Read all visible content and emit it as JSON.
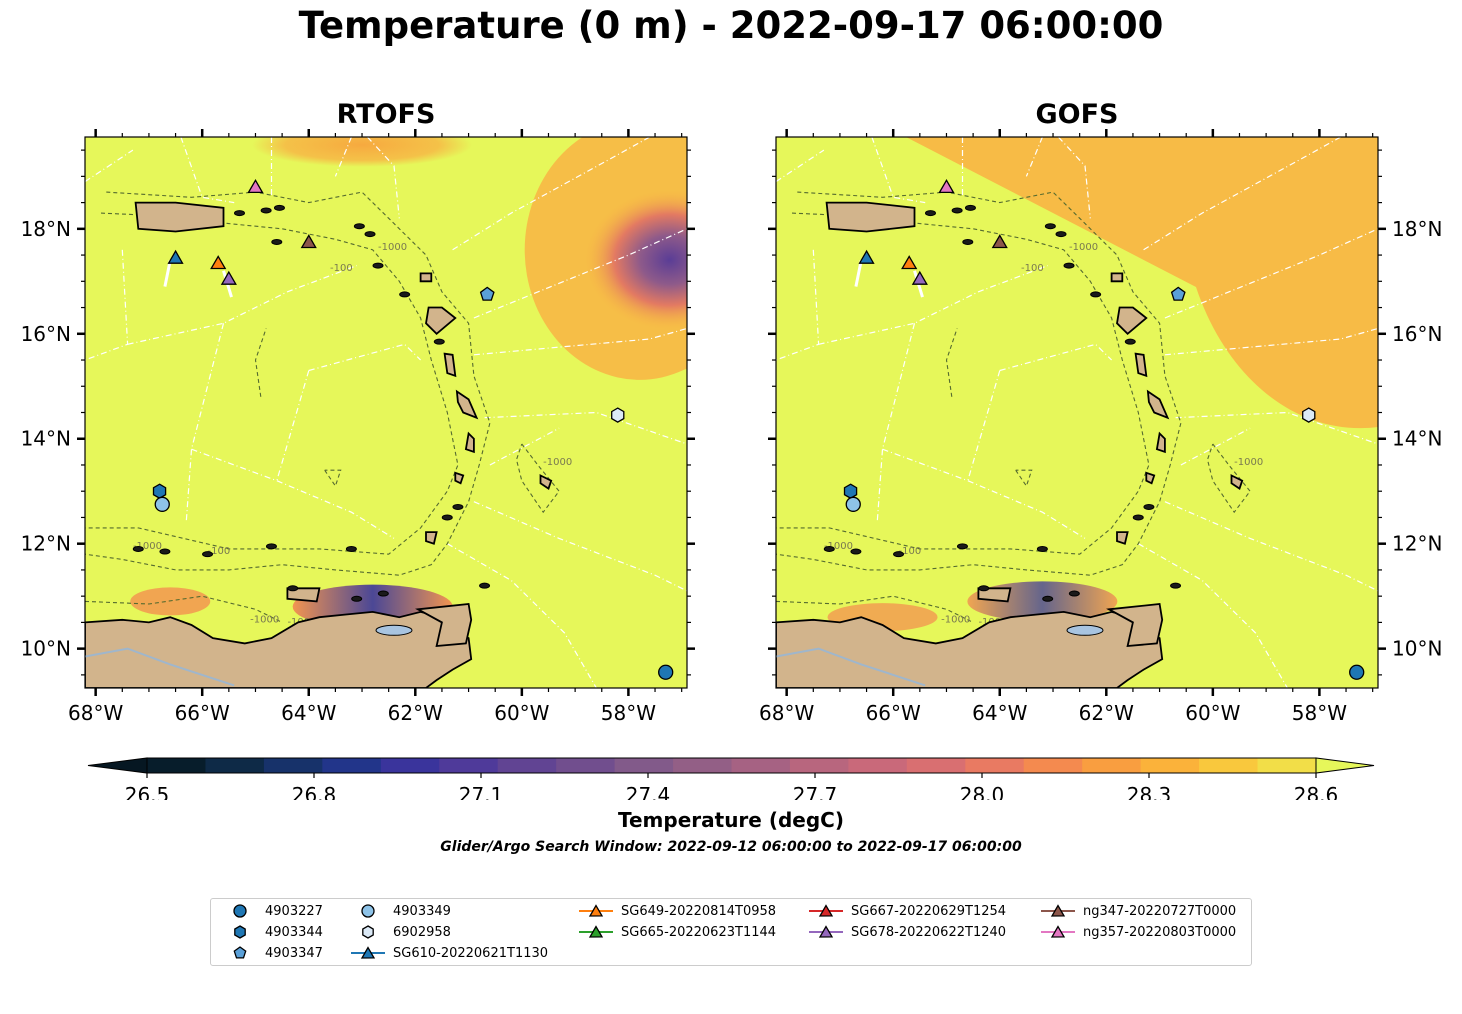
{
  "title": "Temperature (0 m) - 2022-09-17 06:00:00",
  "panels": [
    {
      "title": "RTOFS"
    },
    {
      "title": "GOFS"
    }
  ],
  "axes": {
    "lon_ticks": [
      "68°W",
      "66°W",
      "64°W",
      "62°W",
      "60°W",
      "58°W"
    ],
    "lat_ticks": [
      "18°N",
      "16°N",
      "14°N",
      "12°N",
      "10°N"
    ],
    "lon_values": [
      -68,
      -66,
      -64,
      -62,
      -60,
      -58
    ],
    "lat_values": [
      18,
      16,
      14,
      12,
      10
    ],
    "lon_range": [
      -68.2,
      -56.9
    ],
    "lat_range": [
      9.25,
      19.75
    ]
  },
  "contour_labels": [
    "-100",
    "-1000"
  ],
  "colorbar": {
    "label": "Temperature (degC)",
    "ticks": [
      "26.5",
      "26.8",
      "27.1",
      "27.4",
      "27.7",
      "28.0",
      "28.3",
      "28.6"
    ],
    "min": 26.5,
    "max": 28.6,
    "extend": "both",
    "colors": [
      "#071d2b",
      "#0e2a47",
      "#17326a",
      "#22358a",
      "#3a349c",
      "#4f3a9a",
      "#614493",
      "#714e8e",
      "#825a8a",
      "#935f86",
      "#a66283",
      "#b8667e",
      "#c9697a",
      "#d96f71",
      "#e97a62",
      "#f48a4f",
      "#f99e40",
      "#fbb23a",
      "#f9c83d",
      "#f2de48"
    ]
  },
  "subtitle": "Glider/Argo Search Window: 2022-09-12 06:00:00 to 2022-09-17 06:00:00",
  "colors": {
    "sea": "#e6f75a",
    "land": "#d2b48c",
    "warm": "#f8b444",
    "argo_dark": "#1f77b4",
    "argo_light": "#8ec3e8"
  },
  "platforms": [
    {
      "id": "4903227",
      "kind": "argo",
      "marker": "circle",
      "color": "#1f77b4",
      "lon": -57.3,
      "lat": 9.55
    },
    {
      "id": "4903344",
      "kind": "argo",
      "marker": "hexagon",
      "color": "#1f77b4",
      "lon": -66.8,
      "lat": 13.0
    },
    {
      "id": "4903347",
      "kind": "argo",
      "marker": "pentagon",
      "color": "#5aa0d8",
      "lon": -60.65,
      "lat": 16.75
    },
    {
      "id": "4903349",
      "kind": "argo",
      "marker": "circle",
      "color": "#8ec3e8",
      "lon": -66.75,
      "lat": 12.75
    },
    {
      "id": "6902958",
      "kind": "argo",
      "marker": "hexagon",
      "color": "#dbe9f6",
      "lon": -58.2,
      "lat": 14.45
    },
    {
      "id": "SG610-20220621T1130",
      "kind": "glider",
      "marker": "triangle",
      "color": "#1f77b4",
      "lon": -66.5,
      "lat": 17.45
    },
    {
      "id": "SG649-20220814T0958",
      "kind": "glider",
      "marker": "triangle",
      "color": "#ff7f0e",
      "lon": -65.7,
      "lat": 17.35
    },
    {
      "id": "SG665-20220623T1144",
      "kind": "glider",
      "marker": "triangle",
      "color": "#2ca02c",
      "lon": null,
      "lat": null
    },
    {
      "id": "SG667-20220629T1254",
      "kind": "glider",
      "marker": "triangle",
      "color": "#d62728",
      "lon": null,
      "lat": null
    },
    {
      "id": "SG678-20220622T1240",
      "kind": "glider",
      "marker": "triangle",
      "color": "#9467bd",
      "lon": -65.5,
      "lat": 17.05
    },
    {
      "id": "ng347-20220727T0000",
      "kind": "glider",
      "marker": "triangle",
      "color": "#8c564b",
      "lon": -64.0,
      "lat": 17.75
    },
    {
      "id": "ng357-20220803T0000",
      "kind": "glider",
      "marker": "triangle",
      "color": "#e377c2",
      "lon": -65.0,
      "lat": 18.8
    }
  ]
}
